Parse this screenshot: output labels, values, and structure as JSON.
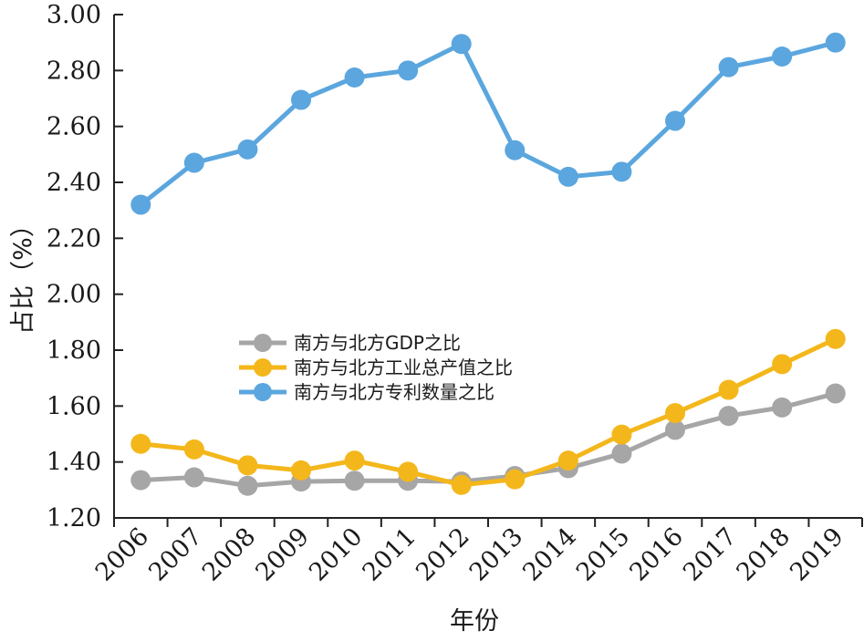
{
  "chart_data": {
    "type": "line",
    "xlabel": "年份",
    "ylabel": "占比（%）",
    "x": [
      "2006",
      "2007",
      "2008",
      "2009",
      "2010",
      "2011",
      "2012",
      "2013",
      "2014",
      "2015",
      "2016",
      "2017",
      "2018",
      "2019"
    ],
    "ylim": [
      1.2,
      3.0
    ],
    "yticks": [
      "1.20",
      "1.40",
      "1.60",
      "1.80",
      "2.00",
      "2.20",
      "2.40",
      "2.60",
      "2.80",
      "3.00"
    ],
    "legend_position": "center-left",
    "grid": false,
    "series": [
      {
        "name": "南方与北方GDP之比",
        "color": "#a6a6a6",
        "values": [
          1.335,
          1.345,
          1.315,
          1.33,
          1.333,
          1.333,
          1.33,
          1.35,
          1.378,
          1.43,
          1.515,
          1.565,
          1.595,
          1.645
        ]
      },
      {
        "name": "南方与北方工业总产值之比",
        "color": "#f4b71b",
        "values": [
          1.465,
          1.445,
          1.388,
          1.37,
          1.405,
          1.365,
          1.318,
          1.338,
          1.405,
          1.498,
          1.575,
          1.658,
          1.75,
          1.84
        ]
      },
      {
        "name": "南方与北方专利数量之比",
        "color": "#5ba6de",
        "values": [
          2.32,
          2.47,
          2.518,
          2.695,
          2.775,
          2.8,
          2.895,
          2.515,
          2.42,
          2.438,
          2.62,
          2.812,
          2.85,
          2.9
        ]
      }
    ]
  }
}
